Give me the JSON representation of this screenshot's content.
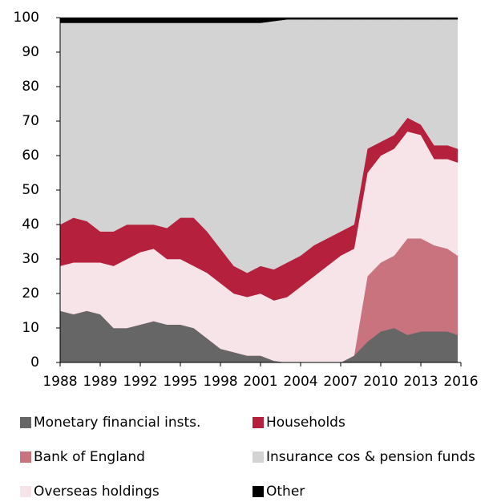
{
  "chart_data": {
    "type": "stacked_area",
    "x": [
      1986,
      1987,
      1988,
      1989,
      1990,
      1991,
      1992,
      1993,
      1994,
      1995,
      1996,
      1997,
      1998,
      1999,
      2000,
      2001,
      2002,
      2003,
      2004,
      2005,
      2006,
      2007,
      2008,
      2009,
      2010,
      2011,
      2012,
      2013,
      2014,
      2015,
      2015.75
    ],
    "xlim": [
      1986,
      2016
    ],
    "xtick_labels": [
      "1988",
      "1989",
      "1992",
      "1995",
      "1998",
      "2001",
      "2004",
      "2007",
      "2010",
      "2013",
      "2016"
    ],
    "ylim": [
      0,
      100
    ],
    "yticks": [
      0,
      10,
      20,
      30,
      40,
      50,
      60,
      70,
      80,
      90,
      100
    ],
    "legend": "bottom",
    "series": [
      {
        "name": "Monetary financial insts.",
        "color": "#666666",
        "values": [
          15,
          14,
          15,
          14,
          10,
          10,
          11,
          12,
          11,
          11,
          10,
          7,
          4,
          3,
          2,
          2,
          0.5,
          0,
          0,
          0,
          0,
          0,
          2,
          6,
          9,
          10,
          8,
          9,
          9,
          9,
          8
        ]
      },
      {
        "name": "Bank of England",
        "color": "#c9737f",
        "values": [
          0,
          0,
          0,
          0,
          0,
          0,
          0,
          0,
          0,
          0,
          0,
          0,
          0,
          0,
          0,
          0,
          0,
          0,
          0,
          0,
          0,
          0,
          0,
          19,
          20,
          21,
          28,
          27,
          25,
          24,
          23
        ]
      },
      {
        "name": "Overseas holdings",
        "color": "#f6e4e8",
        "values": [
          13,
          15,
          14,
          15,
          18,
          20,
          21,
          21,
          19,
          19,
          18,
          19,
          19,
          17,
          17,
          18,
          17.5,
          19,
          22,
          25,
          28,
          31,
          31,
          30,
          31,
          31,
          31,
          30,
          25,
          26,
          27
        ]
      },
      {
        "name": "Households",
        "color": "#b5213d",
        "values": [
          12,
          13,
          12,
          9,
          10,
          10,
          8,
          7,
          9,
          12,
          14,
          12,
          10,
          8,
          7,
          8,
          9,
          10,
          9,
          9,
          8,
          7,
          7,
          7,
          4,
          4,
          4,
          3,
          4,
          4,
          4
        ]
      },
      {
        "name": "Insurance cos & pension funds",
        "color": "#d3d3d3",
        "values": [
          58.5,
          56.5,
          57.5,
          60.5,
          60.5,
          58.5,
          58.5,
          58.5,
          59.5,
          56.5,
          56.5,
          60.5,
          65.5,
          70.5,
          72.5,
          70.5,
          72,
          70.5,
          68.5,
          65.5,
          63.5,
          61.5,
          59.5,
          37.5,
          35.5,
          33.5,
          28.5,
          30.5,
          36.5,
          36.5,
          37.5
        ]
      },
      {
        "name": "Other",
        "color": "#000000",
        "values": [
          1.5,
          1.5,
          1.5,
          1.5,
          1.5,
          1.5,
          1.5,
          1.5,
          1.5,
          1.5,
          1.5,
          1.5,
          1.5,
          1.5,
          1.5,
          1.5,
          1,
          0.5,
          0.5,
          0.5,
          0.5,
          0.5,
          0.5,
          0.5,
          0.5,
          0.5,
          0.5,
          0.5,
          0.5,
          0.5,
          0.5
        ]
      }
    ]
  }
}
